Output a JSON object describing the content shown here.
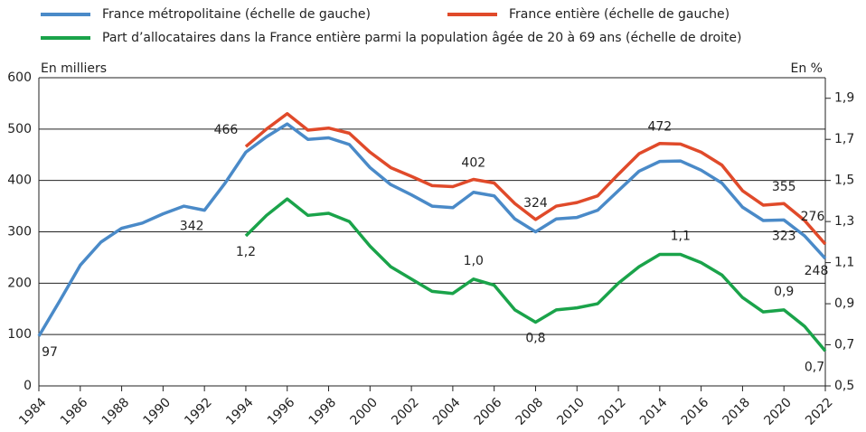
{
  "chart_data": {
    "type": "line",
    "y_axis_label": "En milliers",
    "y2_axis_label": "En %",
    "x": [
      1984,
      1985,
      1986,
      1987,
      1988,
      1989,
      1990,
      1991,
      1992,
      1993,
      1994,
      1995,
      1996,
      1997,
      1998,
      1999,
      2000,
      2001,
      2002,
      2003,
      2004,
      2005,
      2006,
      2007,
      2008,
      2009,
      2010,
      2011,
      2012,
      2013,
      2014,
      2015,
      2016,
      2017,
      2018,
      2019,
      2020,
      2021,
      2022
    ],
    "xlim": [
      1984,
      2022
    ],
    "xticks": [
      1984,
      1986,
      1988,
      1990,
      1992,
      1994,
      1996,
      1998,
      2000,
      2002,
      2004,
      2006,
      2008,
      2010,
      2012,
      2014,
      2016,
      2018,
      2020,
      2022
    ],
    "ylim": [
      0,
      600
    ],
    "yticks": [
      0,
      100,
      200,
      300,
      400,
      500,
      600
    ],
    "y2lim": [
      0.5,
      2.0
    ],
    "y2ticks": [
      {
        "value": 0.5,
        "label": "0,5"
      },
      {
        "value": 0.7,
        "label": "0,7"
      },
      {
        "value": 0.9,
        "label": "0,9"
      },
      {
        "value": 1.1,
        "label": "1,1"
      },
      {
        "value": 1.3,
        "label": "1,3"
      },
      {
        "value": 1.5,
        "label": "1,5"
      },
      {
        "value": 1.7,
        "label": "1,7"
      },
      {
        "value": 1.9,
        "label": "1,9"
      }
    ],
    "grid": true,
    "series": [
      {
        "name": "France métropolitaine (échelle de gauche)",
        "color": "#4a8ac8",
        "values": [
          97,
          165,
          235,
          280,
          307,
          317,
          335,
          350,
          342,
          395,
          455,
          485,
          510,
          480,
          483,
          470,
          425,
          392,
          372,
          350,
          347,
          377,
          370,
          325,
          300,
          325,
          328,
          342,
          380,
          418,
          437,
          438,
          420,
          395,
          348,
          322,
          323,
          292,
          248
        ],
        "value_labels": [
          "97",
          null,
          null,
          null,
          null,
          null,
          null,
          null,
          "342",
          null,
          null,
          null,
          null,
          null,
          null,
          null,
          null,
          null,
          null,
          null,
          null,
          null,
          null,
          null,
          null,
          null,
          null,
          null,
          null,
          null,
          null,
          null,
          null,
          null,
          null,
          null,
          "323",
          null,
          "248"
        ]
      },
      {
        "name": "France entière (échelle de gauche)",
        "color": "#e04a2a",
        "values": [
          null,
          null,
          null,
          null,
          null,
          null,
          null,
          null,
          null,
          null,
          466,
          500,
          530,
          498,
          502,
          492,
          455,
          425,
          408,
          390,
          388,
          402,
          395,
          355,
          324,
          350,
          357,
          370,
          412,
          452,
          472,
          471,
          455,
          430,
          380,
          352,
          355,
          322,
          276
        ],
        "value_labels": [
          null,
          null,
          null,
          null,
          null,
          null,
          null,
          null,
          null,
          null,
          "466",
          null,
          null,
          null,
          null,
          null,
          null,
          null,
          null,
          null,
          null,
          "402",
          null,
          null,
          "324",
          null,
          null,
          null,
          null,
          null,
          "472",
          null,
          null,
          null,
          null,
          null,
          "355",
          null,
          "276"
        ]
      },
      {
        "name": "Part d’allocataires dans la France entière parmi la population âgée de 20 à 69 ans (échelle de droite)",
        "color": "#1aa34a",
        "axis": "y2",
        "values": [
          null,
          null,
          null,
          null,
          null,
          null,
          null,
          null,
          null,
          null,
          1.23,
          1.33,
          1.41,
          1.33,
          1.34,
          1.3,
          1.18,
          1.08,
          1.02,
          0.96,
          0.95,
          1.02,
          0.99,
          0.87,
          0.81,
          0.87,
          0.88,
          0.9,
          1.0,
          1.08,
          1.14,
          1.14,
          1.1,
          1.04,
          0.93,
          0.86,
          0.87,
          0.79,
          0.67
        ],
        "value_labels": [
          null,
          null,
          null,
          null,
          null,
          null,
          null,
          null,
          null,
          null,
          "1,2",
          null,
          null,
          null,
          null,
          null,
          null,
          null,
          null,
          null,
          null,
          "1,0",
          null,
          null,
          "0,8",
          null,
          null,
          null,
          null,
          null,
          null,
          "1,1",
          null,
          null,
          null,
          null,
          "0,9",
          null,
          "0,7"
        ]
      }
    ]
  }
}
